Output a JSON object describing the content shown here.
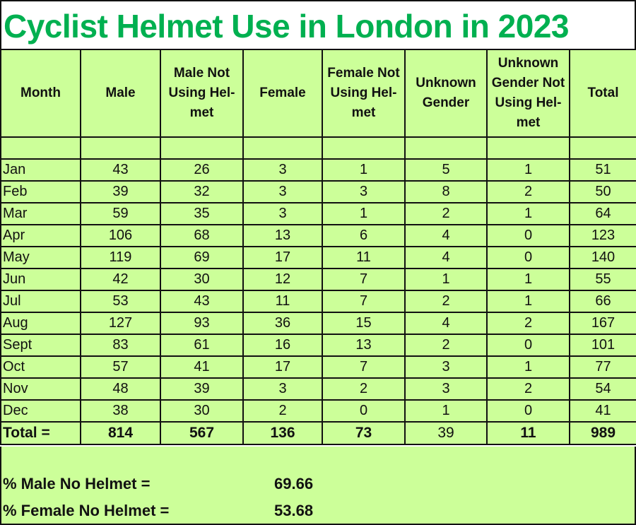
{
  "title": "Cyclist Helmet Use in London in 2023",
  "colors": {
    "title_text": "#00b050",
    "cell_background": "#ccff99",
    "border": "#111111"
  },
  "table": {
    "headers": [
      [
        "Month"
      ],
      [
        "Male"
      ],
      [
        "Male Not",
        "Using Hel-",
        "met"
      ],
      [
        "Female"
      ],
      [
        "Female Not",
        "Using Hel-",
        "met"
      ],
      [
        "Unknown",
        "Gender"
      ],
      [
        "Unknown",
        "Gender Not",
        "Using Hel-",
        "met"
      ],
      [
        "Total"
      ]
    ],
    "rows": [
      {
        "month": "Jan",
        "male": "43",
        "male_no_helmet": "26",
        "female": "3",
        "female_no_helmet": "1",
        "unknown": "5",
        "unknown_no_helmet": "1",
        "total": "51"
      },
      {
        "month": "Feb",
        "male": "39",
        "male_no_helmet": "32",
        "female": "3",
        "female_no_helmet": "3",
        "unknown": "8",
        "unknown_no_helmet": "2",
        "total": "50"
      },
      {
        "month": "Mar",
        "male": "59",
        "male_no_helmet": "35",
        "female": "3",
        "female_no_helmet": "1",
        "unknown": "2",
        "unknown_no_helmet": "1",
        "total": "64"
      },
      {
        "month": "Apr",
        "male": "106",
        "male_no_helmet": "68",
        "female": "13",
        "female_no_helmet": "6",
        "unknown": "4",
        "unknown_no_helmet": "0",
        "total": "123"
      },
      {
        "month": "May",
        "male": "119",
        "male_no_helmet": "69",
        "female": "17",
        "female_no_helmet": "11",
        "unknown": "4",
        "unknown_no_helmet": "0",
        "total": "140"
      },
      {
        "month": "Jun",
        "male": "42",
        "male_no_helmet": "30",
        "female": "12",
        "female_no_helmet": "7",
        "unknown": "1",
        "unknown_no_helmet": "1",
        "total": "55"
      },
      {
        "month": "Jul",
        "male": "53",
        "male_no_helmet": "43",
        "female": "11",
        "female_no_helmet": "7",
        "unknown": "2",
        "unknown_no_helmet": "1",
        "total": "66"
      },
      {
        "month": "Aug",
        "male": "127",
        "male_no_helmet": "93",
        "female": "36",
        "female_no_helmet": "15",
        "unknown": "4",
        "unknown_no_helmet": "2",
        "total": "167"
      },
      {
        "month": "Sept",
        "male": "83",
        "male_no_helmet": "61",
        "female": "16",
        "female_no_helmet": "13",
        "unknown": "2",
        "unknown_no_helmet": "0",
        "total": "101"
      },
      {
        "month": "Oct",
        "male": "57",
        "male_no_helmet": "41",
        "female": "17",
        "female_no_helmet": "7",
        "unknown": "3",
        "unknown_no_helmet": "1",
        "total": "77"
      },
      {
        "month": "Nov",
        "male": "48",
        "male_no_helmet": "39",
        "female": "3",
        "female_no_helmet": "2",
        "unknown": "3",
        "unknown_no_helmet": "2",
        "total": "54"
      },
      {
        "month": "Dec",
        "male": "38",
        "male_no_helmet": "30",
        "female": "2",
        "female_no_helmet": "0",
        "unknown": "1",
        "unknown_no_helmet": "0",
        "total": "41"
      }
    ],
    "totals": {
      "label": "Total =",
      "male": "814",
      "male_no_helmet": "567",
      "female": "136",
      "female_no_helmet": "73",
      "unknown": "39",
      "unknown_no_helmet": "11",
      "total": "989"
    }
  },
  "summary": {
    "male_label": "% Male No Helmet =",
    "male_value": "69.66",
    "female_label": "% Female No Helmet =",
    "female_value": "53.68"
  }
}
